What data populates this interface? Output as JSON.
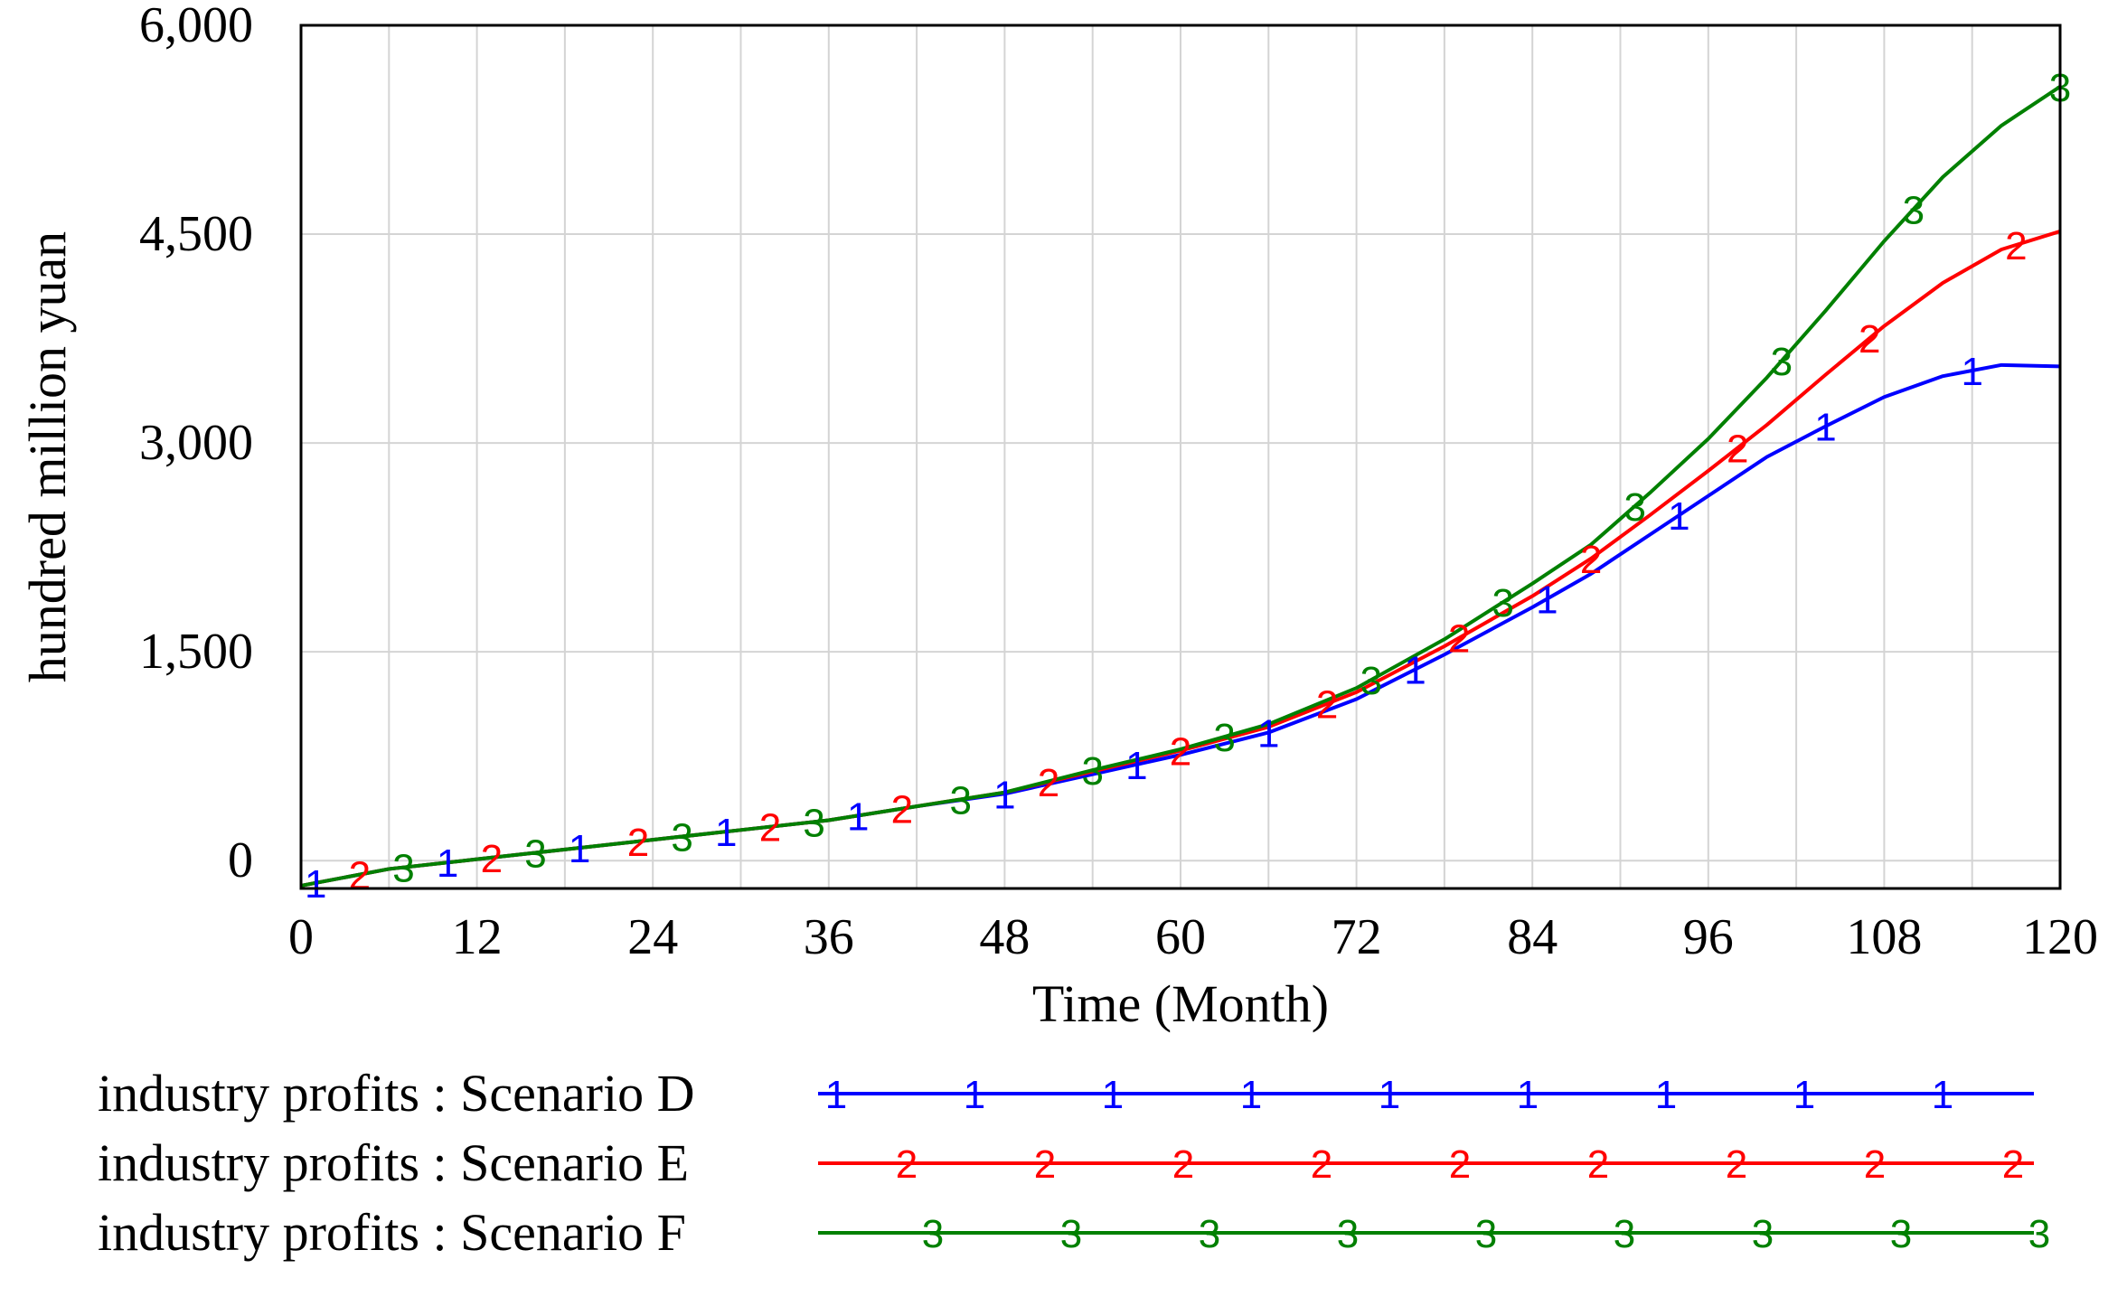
{
  "chart_data": {
    "type": "line",
    "title": "",
    "xlabel": "Time (Month)",
    "ylabel": "hundred million yuan",
    "xlim": [
      0,
      120
    ],
    "ylim": [
      -200,
      6000
    ],
    "x_ticks": [
      0,
      12,
      24,
      36,
      48,
      60,
      72,
      84,
      96,
      108,
      120
    ],
    "x_tick_labels": [
      "0",
      "12",
      "24",
      "36",
      "48",
      "60",
      "72",
      "84",
      "96",
      "108",
      "120"
    ],
    "y_ticks": [
      0,
      1500,
      3000,
      4500,
      6000
    ],
    "y_tick_labels": [
      "0",
      "1,500",
      "3,000",
      "4,500",
      "6,000"
    ],
    "grid": true,
    "legend_position": "bottom",
    "series": [
      {
        "name": "industry profits : Scenario D",
        "marker": "1",
        "color": "#0000ff",
        "x": [
          0,
          6,
          12,
          18,
          24,
          30,
          36,
          42,
          48,
          54,
          60,
          66,
          72,
          78,
          84,
          88,
          92,
          96,
          100,
          104,
          108,
          112,
          116,
          120
        ],
        "values": [
          -180,
          -60,
          10,
          80,
          150,
          220,
          290,
          390,
          480,
          620,
          760,
          920,
          1160,
          1480,
          1820,
          2060,
          2340,
          2620,
          2900,
          3120,
          3330,
          3480,
          3560,
          3550
        ]
      },
      {
        "name": "industry profits : Scenario E",
        "marker": "2",
        "color": "#ff0000",
        "x": [
          0,
          6,
          12,
          18,
          24,
          30,
          36,
          42,
          48,
          54,
          60,
          66,
          72,
          78,
          84,
          88,
          92,
          96,
          100,
          104,
          108,
          112,
          116,
          120
        ],
        "values": [
          -180,
          -60,
          10,
          80,
          150,
          220,
          290,
          390,
          490,
          640,
          790,
          960,
          1210,
          1540,
          1900,
          2170,
          2480,
          2800,
          3130,
          3490,
          3840,
          4150,
          4390,
          4520
        ]
      },
      {
        "name": "industry profits : Scenario F",
        "marker": "3",
        "color": "#008000",
        "x": [
          0,
          6,
          12,
          18,
          24,
          30,
          36,
          42,
          48,
          54,
          60,
          66,
          72,
          78,
          84,
          88,
          92,
          96,
          100,
          104,
          108,
          112,
          116,
          120
        ],
        "values": [
          -180,
          -60,
          10,
          80,
          150,
          220,
          290,
          390,
          490,
          650,
          800,
          980,
          1240,
          1590,
          1990,
          2270,
          2640,
          3030,
          3470,
          3950,
          4450,
          4910,
          5280,
          5560
        ]
      }
    ]
  }
}
